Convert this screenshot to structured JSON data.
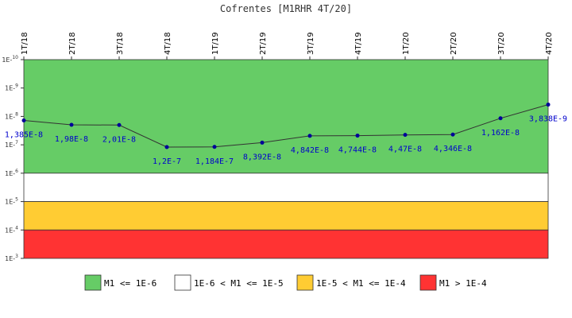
{
  "chart_data": {
    "type": "line",
    "title": "Cofrentes [M1RHR 4T/20]",
    "categories": [
      "1T/18",
      "2T/18",
      "3T/18",
      "4T/18",
      "1T/19",
      "2T/19",
      "3T/19",
      "4T/19",
      "1T/20",
      "2T/20",
      "3T/20",
      "4T/20"
    ],
    "series": [
      {
        "values": [
          1.385e-08,
          1.98e-08,
          2.01e-08,
          1.2e-07,
          1.184e-07,
          8.392e-08,
          4.842e-08,
          4.744e-08,
          4.47e-08,
          4.346e-08,
          1.162e-08,
          3.838e-09
        ],
        "data_labels": [
          "1,385E-8",
          "1,98E-8",
          "2,01E-8",
          "1,2E-7",
          "1,184E-7",
          "8,392E-8",
          "4,842E-8",
          "4,744E-8",
          "4,47E-8",
          "4,346E-8",
          "1,162E-8",
          "3,838E-9"
        ],
        "color": "#333333",
        "marker_color": "#000099"
      }
    ],
    "y_scale": "log",
    "y_axis_inverted": true,
    "ylim": [
      1e-10,
      0.001
    ],
    "y_ticks": [
      {
        "value": 1e-10,
        "base": "1E-",
        "exp": "10"
      },
      {
        "value": 1e-09,
        "base": "1E-",
        "exp": "9"
      },
      {
        "value": 1e-08,
        "base": "1E-",
        "exp": "8"
      },
      {
        "value": 1e-07,
        "base": "1E-",
        "exp": "7"
      },
      {
        "value": 1e-06,
        "base": "1E-",
        "exp": "6"
      },
      {
        "value": 1e-05,
        "base": "1E-",
        "exp": "5"
      },
      {
        "value": 0.0001,
        "base": "1E-",
        "exp": "4"
      },
      {
        "value": 0.001,
        "base": "1E-",
        "exp": "3"
      }
    ],
    "x_axis_position": "top",
    "x_tick_rotation": "vertical",
    "grid": false,
    "bands": [
      {
        "from": 1e-10,
        "to": 1e-06,
        "color": "#66cc66"
      },
      {
        "from": 1e-06,
        "to": 1e-05,
        "color": "#ffffff"
      },
      {
        "from": 1e-05,
        "to": 0.0001,
        "color": "#ffcc33"
      },
      {
        "from": 0.0001,
        "to": 0.001,
        "color": "#ff3333"
      }
    ],
    "legend_position": "bottom",
    "legend": [
      {
        "label": "M1 <= 1E-6",
        "color": "#66cc66"
      },
      {
        "label": "1E-6 < M1 <= 1E-5",
        "color": "#ffffff"
      },
      {
        "label": "1E-5 < M1 <= 1E-4",
        "color": "#ffcc33"
      },
      {
        "label": "M1 > 1E-4",
        "color": "#ff3333"
      }
    ]
  }
}
